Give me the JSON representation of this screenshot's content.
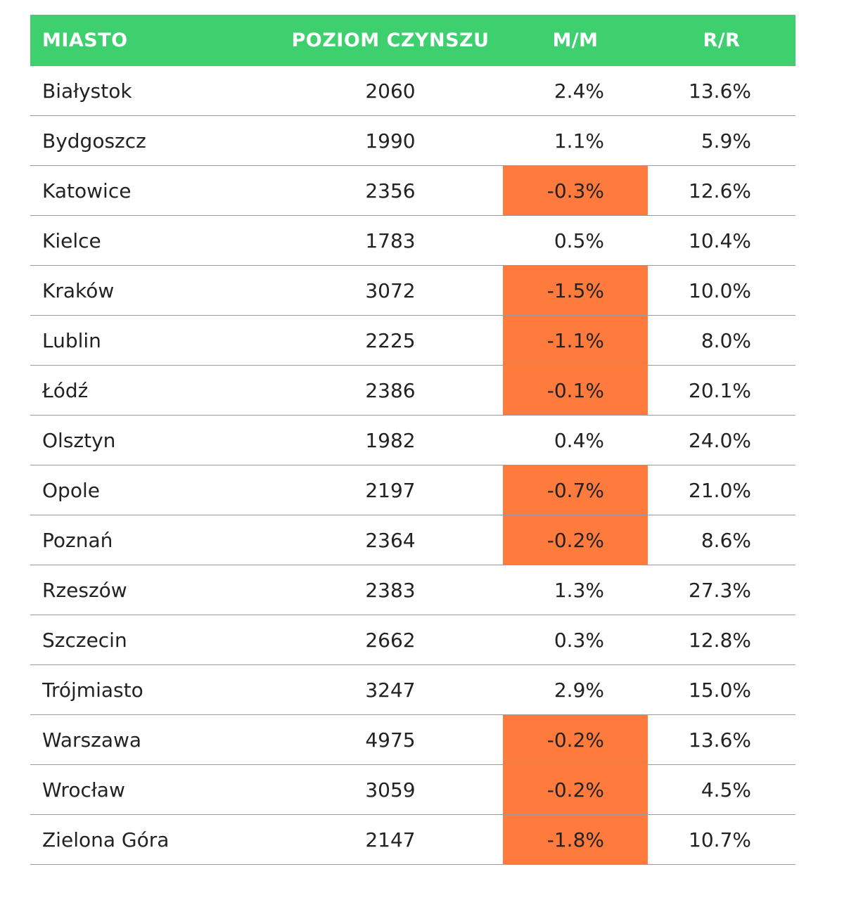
{
  "chart_data": {
    "type": "table",
    "columns": [
      "MIASTO",
      "POZIOM CZYNSZU",
      "M/M",
      "R/R"
    ],
    "colors": {
      "header_bg": "#3ecf6e",
      "negative_bg": "#ff7a3d",
      "header_text": "#ffffff"
    },
    "rows": [
      {
        "city": "Białystok",
        "rent": "2060",
        "mm": "2.4%",
        "rr": "13.6%",
        "mm_negative": false
      },
      {
        "city": "Bydgoszcz",
        "rent": "1990",
        "mm": "1.1%",
        "rr": "5.9%",
        "mm_negative": false
      },
      {
        "city": "Katowice",
        "rent": "2356",
        "mm": "-0.3%",
        "rr": "12.6%",
        "mm_negative": true
      },
      {
        "city": "Kielce",
        "rent": "1783",
        "mm": "0.5%",
        "rr": "10.4%",
        "mm_negative": false
      },
      {
        "city": "Kraków",
        "rent": "3072",
        "mm": "-1.5%",
        "rr": "10.0%",
        "mm_negative": true
      },
      {
        "city": "Lublin",
        "rent": "2225",
        "mm": "-1.1%",
        "rr": "8.0%",
        "mm_negative": true
      },
      {
        "city": "Łódź",
        "rent": "2386",
        "mm": "-0.1%",
        "rr": "20.1%",
        "mm_negative": true
      },
      {
        "city": "Olsztyn",
        "rent": "1982",
        "mm": "0.4%",
        "rr": "24.0%",
        "mm_negative": false
      },
      {
        "city": "Opole",
        "rent": "2197",
        "mm": "-0.7%",
        "rr": "21.0%",
        "mm_negative": true
      },
      {
        "city": "Poznań",
        "rent": "2364",
        "mm": "-0.2%",
        "rr": "8.6%",
        "mm_negative": true
      },
      {
        "city": "Rzeszów",
        "rent": "2383",
        "mm": "1.3%",
        "rr": "27.3%",
        "mm_negative": false
      },
      {
        "city": "Szczecin",
        "rent": "2662",
        "mm": "0.3%",
        "rr": "12.8%",
        "mm_negative": false
      },
      {
        "city": "Trójmiasto",
        "rent": "3247",
        "mm": "2.9%",
        "rr": "15.0%",
        "mm_negative": false
      },
      {
        "city": "Warszawa",
        "rent": "4975",
        "mm": "-0.2%",
        "rr": "13.6%",
        "mm_negative": true
      },
      {
        "city": "Wrocław",
        "rent": "3059",
        "mm": "-0.2%",
        "rr": "4.5%",
        "mm_negative": true
      },
      {
        "city": "Zielona Góra",
        "rent": "2147",
        "mm": "-1.8%",
        "rr": "10.7%",
        "mm_negative": true
      }
    ]
  }
}
